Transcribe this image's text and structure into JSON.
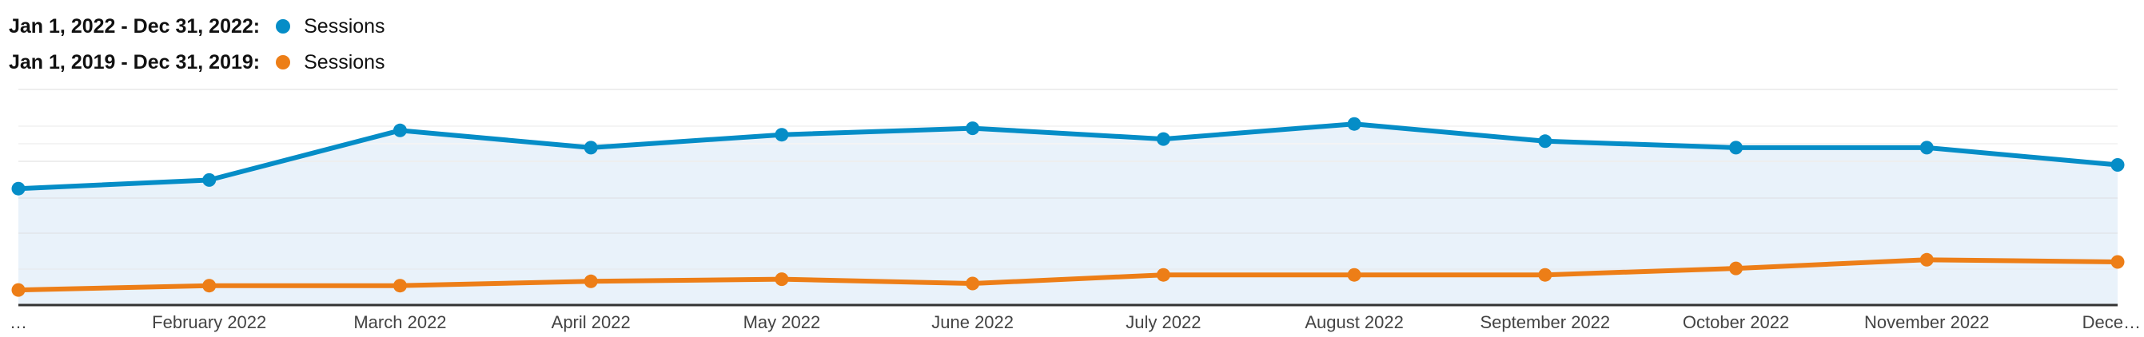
{
  "legend": [
    {
      "range": "Jan 1, 2022 - Dec 31, 2022:",
      "name": "Sessions",
      "color": "#058dc7"
    },
    {
      "range": "Jan 1, 2019 - Dec 31, 2019:",
      "name": "Sessions",
      "color": "#ed7e17"
    }
  ],
  "chart_data": {
    "type": "line",
    "categories": [
      "…",
      "February 2022",
      "March 2022",
      "April 2022",
      "May 2022",
      "June 2022",
      "July 2022",
      "August 2022",
      "September 2022",
      "October 2022",
      "November 2022",
      "Dece…"
    ],
    "ylim": [
      0,
      100
    ],
    "grid": true,
    "legend_placement": "top-left",
    "series": [
      {
        "name": "Sessions",
        "period": "Jan 1, 2022 - Dec 31, 2022",
        "color": "#058dc7",
        "area_fill": "#e8f1fa",
        "values": [
          54,
          58,
          81,
          73,
          79,
          82,
          77,
          84,
          76,
          73,
          73,
          65
        ]
      },
      {
        "name": "Sessions",
        "period": "Jan 1, 2019 - Dec 31, 2019",
        "color": "#ed7e17",
        "values": [
          7,
          9,
          9,
          11,
          12,
          10,
          14,
          14,
          14,
          17,
          21,
          20
        ]
      }
    ]
  }
}
